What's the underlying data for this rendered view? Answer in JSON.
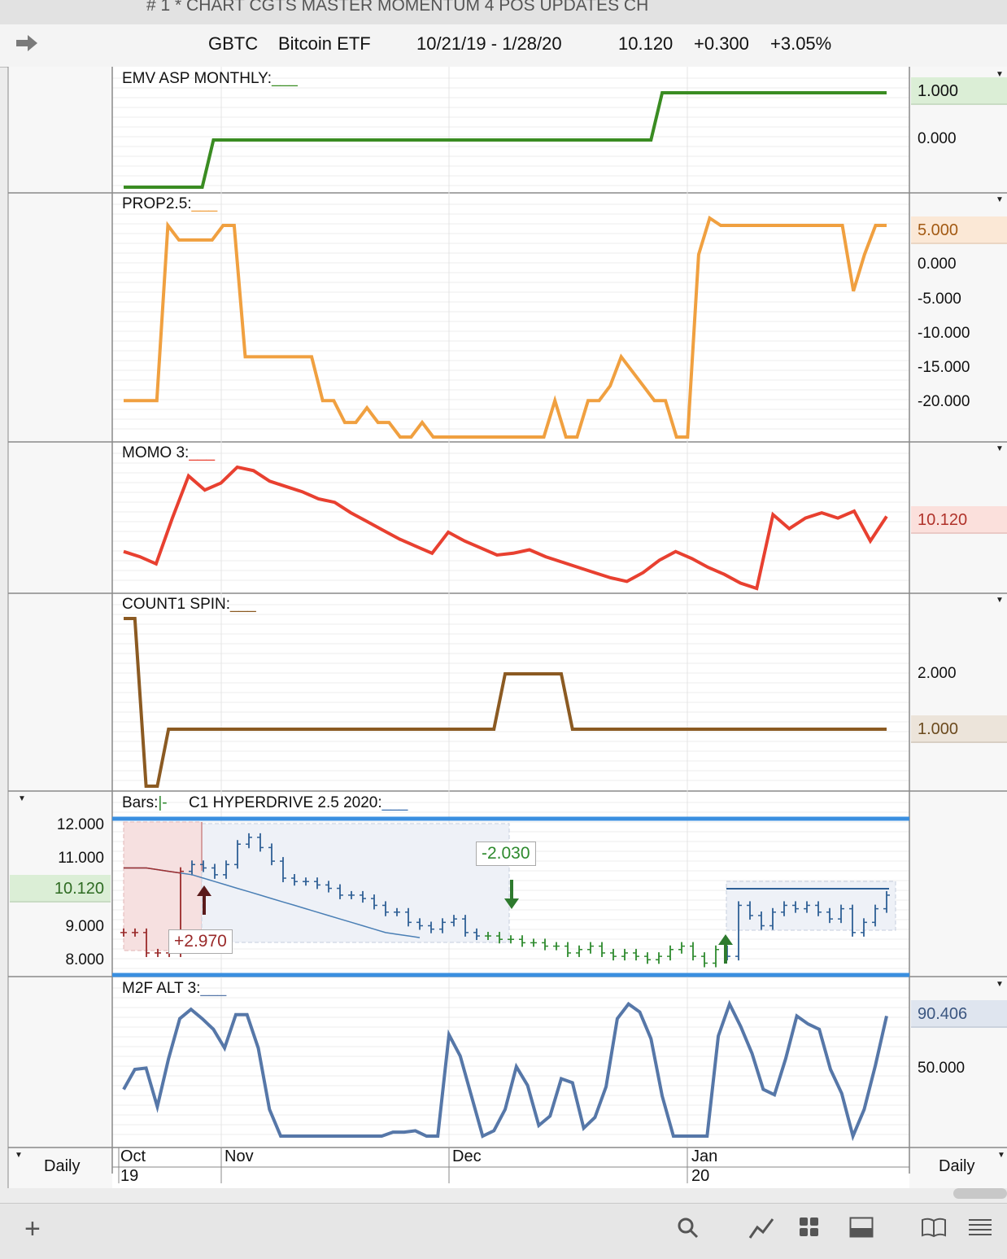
{
  "window": {
    "title": "# 1 * CHART CGTS MASTER MOMENTUM 4 POS UPDATES CH"
  },
  "header": {
    "symbol": "GBTC",
    "name": "Bitcoin ETF",
    "date_range": "10/21/19 - 1/28/20",
    "last": "10.120",
    "change": "+0.300",
    "change_pct": "+3.05%"
  },
  "colors": {
    "emv": "#3a8c22",
    "prop": "#f0a040",
    "momo": "#e84030",
    "count": "#8b5a22",
    "m2f": "#5677a8",
    "price_down": "#9a2a2a",
    "price_mid": "#2e5f95",
    "price_up": "#2e8a2e",
    "band": "#3a8fe0"
  },
  "panes": {
    "emv": {
      "label": "EMV ASP MONTHLY:",
      "axis": [
        "1.000",
        "0.000"
      ],
      "value": "1.000"
    },
    "prop": {
      "label": "PROP2.5:",
      "axis": [
        "5.000",
        "0.000",
        "-5.000",
        "-10.000",
        "-15.000",
        "-20.000"
      ],
      "value": "5.000"
    },
    "momo": {
      "label": "MOMO 3:",
      "value": "10.120"
    },
    "count": {
      "label": "COUNT1 SPIN:",
      "axis": [
        "2.000",
        "1.000"
      ],
      "value": "1.000"
    },
    "price": {
      "label_bars": "Bars:",
      "label_bars_sym": "|-",
      "label": "C1 HYPERDRIVE 2.5 2020:",
      "axis": [
        "12.000",
        "11.000",
        "10.120",
        "9.000",
        "8.000"
      ],
      "value": "10.120",
      "callout_up": "+2.970",
      "callout_down": "-2.030"
    },
    "m2f": {
      "label": "M2F ALT 3:",
      "axis": [
        "50.000"
      ],
      "value": "90.406"
    }
  },
  "bottom": {
    "left_label": "Daily",
    "right_label": "Daily",
    "months": [
      "Oct",
      "Nov",
      "Dec",
      "Jan"
    ],
    "years": [
      "19",
      "20"
    ]
  },
  "chart_data": [
    {
      "type": "line",
      "title": "EMV ASP MONTHLY",
      "x_range": [
        "10/21/19",
        "1/28/20"
      ],
      "values": [
        -1,
        -1,
        -1,
        -1,
        -1,
        -1,
        -1,
        -1,
        0,
        0,
        0,
        0,
        0,
        0,
        0,
        0,
        0,
        0,
        0,
        0,
        0,
        0,
        0,
        0,
        0,
        0,
        0,
        0,
        0,
        0,
        0,
        0,
        0,
        0,
        0,
        0,
        0,
        0,
        0,
        0,
        0,
        0,
        0,
        0,
        0,
        0,
        0,
        0,
        1,
        1,
        1,
        1,
        1,
        1,
        1,
        1,
        1,
        1,
        1,
        1,
        1,
        1,
        1,
        1,
        1,
        1,
        1,
        1,
        1
      ]
    },
    {
      "type": "line",
      "title": "PROP2.5",
      "values": [
        -19,
        -19,
        -19,
        -19,
        5,
        3,
        3,
        3,
        3,
        5,
        5,
        -13,
        -13,
        -13,
        -13,
        -13,
        -13,
        -13,
        -19,
        -19,
        -22,
        -22,
        -20,
        -22,
        -22,
        -24,
        -24,
        -22,
        -24,
        -24,
        -24,
        -24,
        -24,
        -24,
        -24,
        -24,
        -24,
        -24,
        -24,
        -19,
        -24,
        -24,
        -19,
        -19,
        -17,
        -13,
        -15,
        -17,
        -19,
        -19,
        -24,
        -24,
        1,
        6,
        5,
        5,
        5,
        5,
        5,
        5,
        5,
        5,
        5,
        5,
        5,
        5,
        -4,
        1,
        5,
        5
      ]
    },
    {
      "type": "line",
      "title": "MOMO 3",
      "values": [
        8.1,
        7.8,
        7.4,
        10.0,
        12.4,
        11.6,
        12.0,
        12.9,
        12.7,
        12.1,
        11.8,
        11.5,
        11.1,
        10.9,
        10.3,
        9.8,
        9.3,
        8.8,
        8.4,
        8.0,
        9.2,
        8.7,
        8.3,
        7.9,
        8.0,
        8.2,
        7.8,
        7.5,
        7.2,
        6.9,
        6.6,
        6.4,
        6.9,
        7.6,
        8.1,
        7.7,
        7.2,
        6.8,
        6.3,
        6.0,
        10.2,
        9.4,
        10.0,
        10.3,
        10.0,
        10.4,
        8.7,
        10.1
      ]
    },
    {
      "type": "line",
      "title": "COUNT1 SPIN",
      "values": [
        3,
        3,
        -1,
        -1,
        1,
        1,
        1,
        1,
        1,
        1,
        1,
        1,
        1,
        1,
        1,
        1,
        1,
        1,
        1,
        1,
        1,
        1,
        1,
        1,
        1,
        1,
        1,
        1,
        1,
        1,
        1,
        1,
        1,
        1,
        2,
        2,
        2,
        2,
        2,
        2,
        1,
        1,
        1,
        1,
        1,
        1,
        1,
        1,
        1,
        1,
        1,
        1,
        1,
        1,
        1,
        1,
        1,
        1,
        1,
        1,
        1,
        1,
        1,
        1,
        1,
        1,
        1,
        1,
        1
      ]
    },
    {
      "type": "bar",
      "title": "C1 HYPERDRIVE 2.5 2020",
      "bar_style": "OHLC",
      "ylim": [
        7.8,
        12.3
      ],
      "close": [
        9.0,
        9.0,
        8.4,
        8.4,
        8.4,
        10.8,
        11.0,
        10.9,
        10.7,
        11.0,
        11.6,
        11.8,
        11.5,
        11.1,
        10.6,
        10.5,
        10.5,
        10.4,
        10.3,
        10.1,
        10.1,
        10.0,
        9.8,
        9.6,
        9.6,
        9.3,
        9.2,
        9.1,
        9.3,
        9.4,
        9.0,
        8.9,
        8.9,
        8.8,
        8.8,
        8.7,
        8.7,
        8.6,
        8.6,
        8.4,
        8.5,
        8.6,
        8.4,
        8.3,
        8.4,
        8.3,
        8.2,
        8.3,
        8.5,
        8.6,
        8.3,
        8.1,
        8.5,
        8.3,
        9.8,
        9.5,
        9.2,
        9.6,
        9.8,
        9.7,
        9.8,
        9.6,
        9.4,
        9.7,
        9.0,
        9.3,
        9.7,
        10.1
      ],
      "ma": [
        10.9,
        10.9,
        10.9,
        10.85,
        10.8,
        10.75,
        10.7,
        10.6,
        10.5,
        10.4,
        10.3,
        10.2,
        10.1,
        10.0,
        9.9,
        9.8,
        9.7,
        9.6,
        9.5,
        9.4,
        9.3,
        9.2,
        9.1,
        9.0,
        8.95,
        8.9,
        8.85
      ]
    },
    {
      "type": "line",
      "title": "M2F ALT 3",
      "ylim": [
        0,
        100
      ],
      "values": [
        35,
        50,
        51,
        22,
        58,
        88,
        95,
        88,
        80,
        66,
        91,
        91,
        66,
        20,
        0,
        0,
        0,
        0,
        0,
        0,
        0,
        0,
        0,
        0,
        3,
        3,
        4,
        0,
        0,
        76,
        60,
        30,
        0,
        4,
        20,
        52,
        38,
        8,
        15,
        43,
        40,
        6,
        14,
        37,
        88,
        99,
        93,
        73,
        30,
        0,
        0,
        0,
        0,
        75,
        99,
        82,
        62,
        35,
        31,
        58,
        90,
        84,
        80,
        50,
        32,
        0,
        20,
        53,
        90
      ]
    }
  ]
}
